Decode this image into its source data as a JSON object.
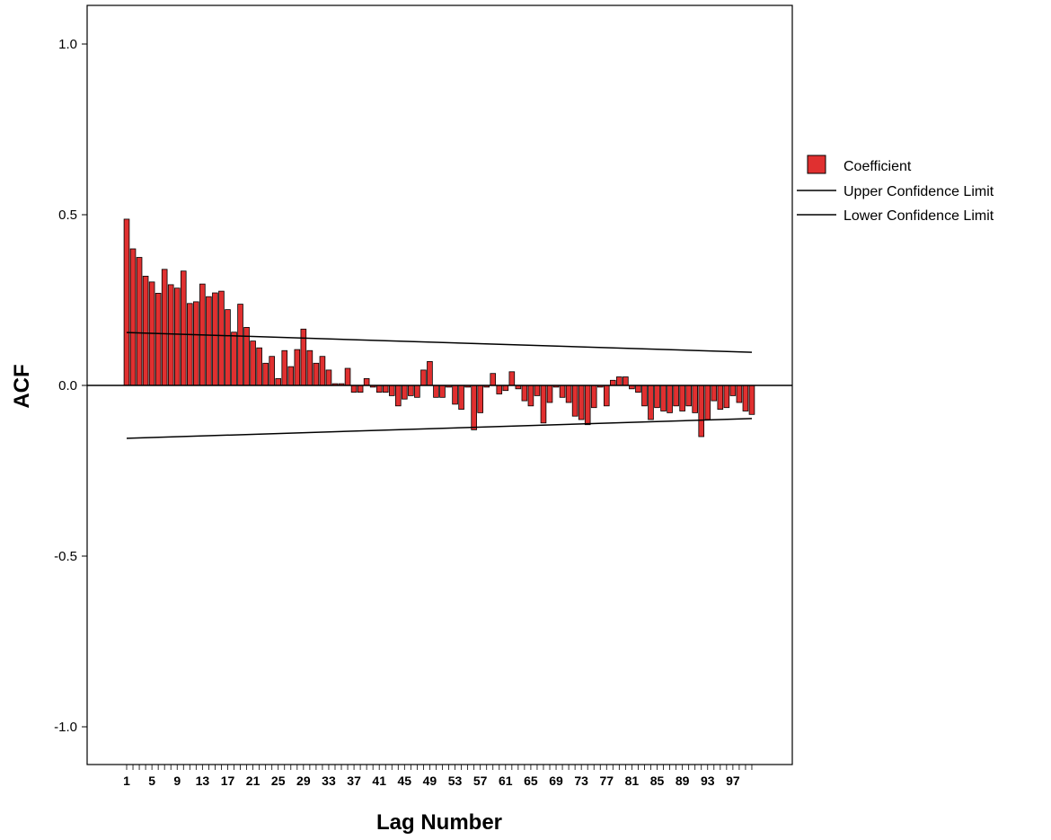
{
  "chart_data": {
    "type": "bar",
    "xlabel": "Lag Number",
    "ylabel": "ACF",
    "ylim": [
      -1.1,
      1.1
    ],
    "yticks": [
      1.0,
      0.5,
      0.0,
      -0.5,
      -1.0
    ],
    "ytick_labels": [
      "1.0",
      "0.5",
      "0.0",
      "-0.5",
      "-1.0"
    ],
    "xtick_labels": [
      "1",
      "5",
      "9",
      "13",
      "17",
      "21",
      "25",
      "29",
      "33",
      "37",
      "41",
      "45",
      "49",
      "53",
      "57",
      "61",
      "65",
      "69",
      "73",
      "77",
      "81",
      "85",
      "89",
      "93",
      "97"
    ],
    "legend_position": "right",
    "bar_color": "#e03030",
    "bar_stroke": "#000000",
    "series": [
      {
        "name": "Coefficient",
        "values": [
          0.487,
          0.4,
          0.375,
          0.32,
          0.303,
          0.27,
          0.34,
          0.295,
          0.285,
          0.335,
          0.24,
          0.245,
          0.297,
          0.26,
          0.271,
          0.276,
          0.222,
          0.156,
          0.238,
          0.17,
          0.13,
          0.11,
          0.065,
          0.085,
          0.02,
          0.102,
          0.055,
          0.105,
          0.165,
          0.102,
          0.065,
          0.085,
          0.045,
          0.005,
          0.005,
          0.05,
          -0.02,
          -0.02,
          0.02,
          -0.005,
          -0.02,
          -0.02,
          -0.03,
          -0.06,
          -0.04,
          -0.03,
          -0.035,
          0.045,
          0.07,
          -0.035,
          -0.035,
          -0.005,
          -0.055,
          -0.07,
          -0.005,
          -0.13,
          -0.08,
          -0.005,
          0.035,
          -0.025,
          -0.015,
          0.04,
          -0.01,
          -0.045,
          -0.06,
          -0.03,
          -0.11,
          -0.05,
          -0.005,
          -0.035,
          -0.05,
          -0.09,
          -0.1,
          -0.115,
          -0.065,
          -0.005,
          -0.06,
          0.015,
          0.025,
          0.025,
          -0.01,
          -0.02,
          -0.06,
          -0.1,
          -0.065,
          -0.075,
          -0.08,
          -0.06,
          -0.075,
          -0.06,
          -0.08,
          -0.15,
          -0.1,
          -0.045,
          -0.07,
          -0.065,
          -0.03,
          -0.05,
          -0.075,
          -0.085
        ]
      }
    ],
    "confidence_limits": {
      "upper": {
        "name": "Upper Confidence Limit",
        "start": 0.155,
        "end": 0.097
      },
      "lower": {
        "name": "Lower Confidence Limit",
        "start": -0.155,
        "end": -0.097
      }
    }
  }
}
